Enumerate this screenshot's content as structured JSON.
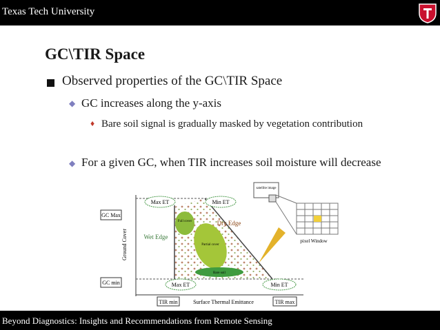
{
  "header": {
    "title": "Texas Tech University"
  },
  "slide": {
    "title": "GC\\TIR Space",
    "bullets": [
      {
        "text": "Observed properties of the GC\\TIR Space",
        "items": [
          {
            "text": "GC increases along the y-axis",
            "items": [
              "Bare soil signal is gradually masked by vegetation contribution"
            ]
          },
          {
            "text": "For a given GC, when TIR increases soil moisture will decrease"
          }
        ]
      }
    ]
  },
  "diagram": {
    "labels": {
      "top_max_et": "Max ET",
      "top_min_et": "Min ET",
      "gc_max": "GC Max",
      "y_axis": "Ground Cover",
      "wet_edge": "Wet Edge",
      "dry_edge": "Dry Edge",
      "full_cover": "Full cover",
      "partial_cover": "Partial cover",
      "bare_soil": "Bare soil",
      "gc_min": "GC min",
      "bottom_max_et": "Max ET",
      "bottom_min_et": "Min ET",
      "tir_min": "TIR min",
      "x_axis": "Surface Thermal Emittance",
      "tir_max": "TIR max",
      "satellite_image": "satellite image",
      "pixel_window": "pixel Window"
    }
  },
  "footer": {
    "text": "Beyond Diagnostics: Insights and Recommendations from Remote Sensing"
  }
}
